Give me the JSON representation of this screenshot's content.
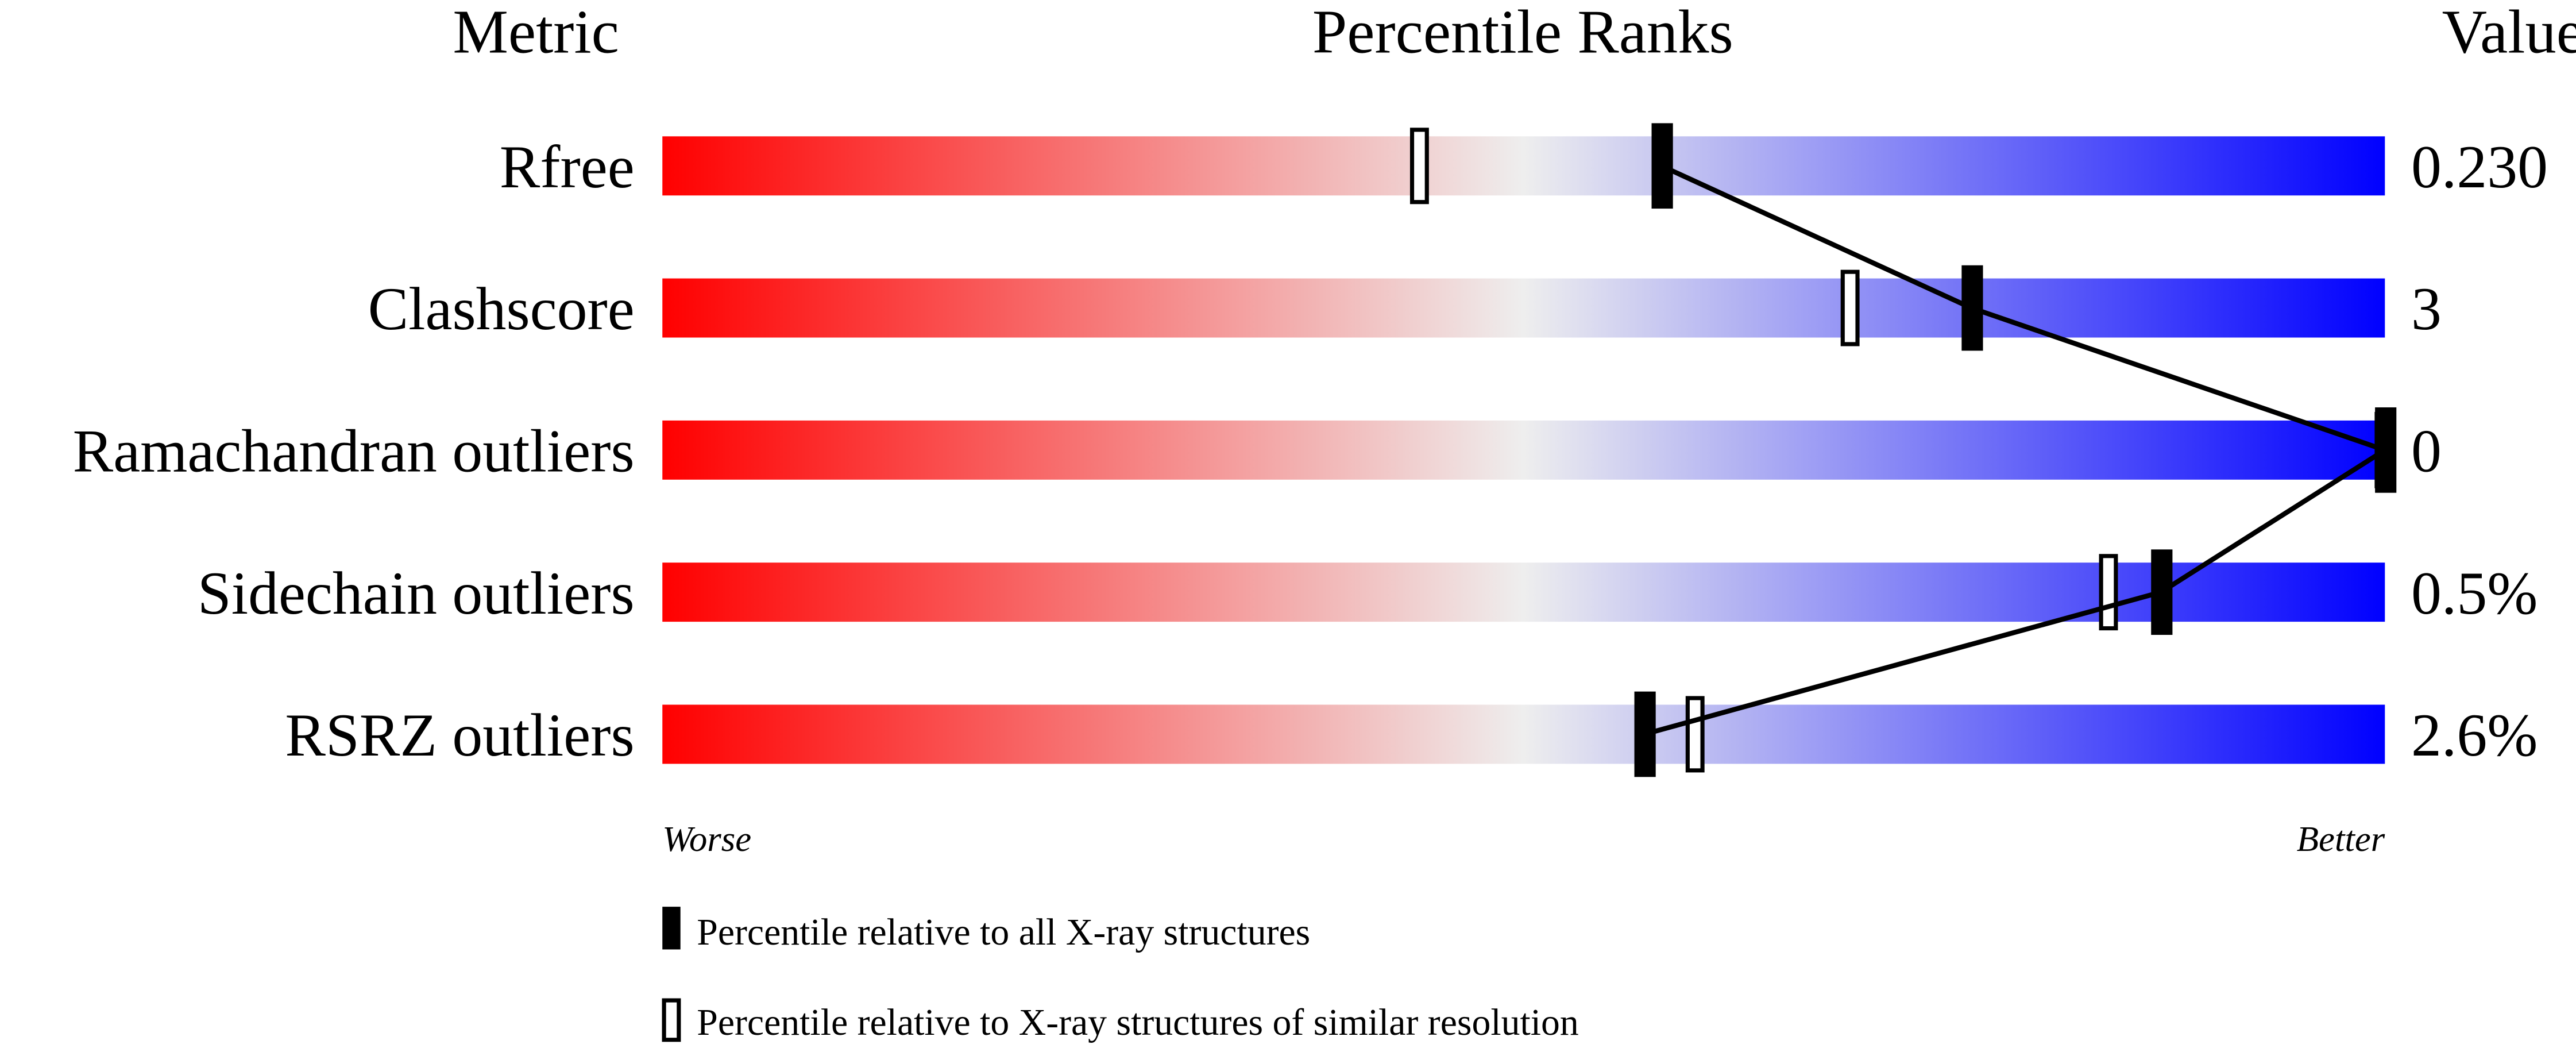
{
  "chart_data": {
    "type": "bar",
    "headers": {
      "metric": "Metric",
      "ranks": "Percentile Ranks",
      "value": "Value"
    },
    "xlim": [
      0,
      100
    ],
    "axis_labels": {
      "left": "Worse",
      "right": "Better"
    },
    "gradient_colors": {
      "worse": "#ff0000",
      "mid": "#eeeeee",
      "better": "#0000ff"
    },
    "metrics": [
      {
        "name": "Rfree",
        "value": "0.230",
        "percentile_all": 58,
        "percentile_similar": 44
      },
      {
        "name": "Clashscore",
        "value": "3",
        "percentile_all": 76,
        "percentile_similar": 69
      },
      {
        "name": "Ramachandran outliers",
        "value": "0",
        "percentile_all": 100,
        "percentile_similar": 100
      },
      {
        "name": "Sidechain outliers",
        "value": "0.5%",
        "percentile_all": 87,
        "percentile_similar": 84
      },
      {
        "name": "RSRZ outliers",
        "value": "2.6%",
        "percentile_all": 57,
        "percentile_similar": 60
      }
    ],
    "legend": [
      {
        "marker": "filled",
        "label": "Percentile relative to all X-ray structures"
      },
      {
        "marker": "hollow",
        "label": "Percentile relative to X-ray structures of similar resolution"
      }
    ]
  }
}
